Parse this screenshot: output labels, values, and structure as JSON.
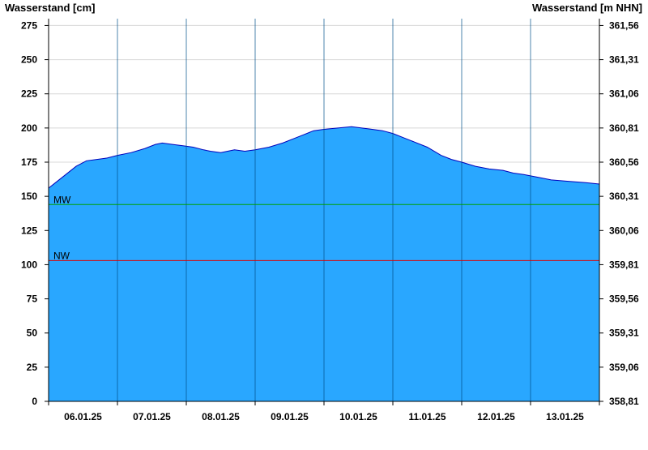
{
  "chart_data": {
    "type": "area",
    "y_left_title": "Wasserstand [cm]",
    "y_right_title": "Wasserstand [m NHN]",
    "ylim": [
      0,
      280
    ],
    "y_ticks": [
      0,
      25,
      50,
      75,
      100,
      125,
      150,
      175,
      200,
      225,
      250,
      275
    ],
    "y_right_ticks": [
      "358,81",
      "359,06",
      "359,31",
      "359,56",
      "359,81",
      "360,06",
      "360,31",
      "360,56",
      "360,81",
      "361,06",
      "361,31",
      "361,56"
    ],
    "x_range_days": [
      0,
      8
    ],
    "x_tick_labels": [
      "06.01.25",
      "07.01.25",
      "08.01.25",
      "09.01.25",
      "10.01.25",
      "11.01.25",
      "12.01.25",
      "13.01.25"
    ],
    "grid": true,
    "series": [
      {
        "x": [
          0,
          0.1,
          0.25,
          0.4,
          0.55,
          0.7,
          0.85,
          1.0,
          1.2,
          1.4,
          1.55,
          1.65,
          1.8,
          1.95,
          2.1,
          2.25,
          2.35,
          2.5,
          2.7,
          2.85,
          3.0,
          3.2,
          3.4,
          3.55,
          3.7,
          3.85,
          4.0,
          4.2,
          4.4,
          4.55,
          4.7,
          4.85,
          5.0,
          5.15,
          5.3,
          5.5,
          5.7,
          5.85,
          6.0,
          6.2,
          6.4,
          6.6,
          6.75,
          6.9,
          7.1,
          7.3,
          7.55,
          7.8,
          8.0
        ],
        "values": [
          156,
          160,
          166,
          172,
          176,
          177,
          178,
          180,
          182,
          185,
          188,
          189,
          188,
          187,
          186,
          184,
          183,
          182,
          184,
          183,
          184,
          186,
          189,
          192,
          195,
          198,
          199,
          200,
          201,
          200,
          199,
          198,
          196,
          193,
          190,
          186,
          180,
          177,
          175,
          172,
          170,
          169,
          167,
          166,
          164,
          162,
          161,
          160,
          159
        ]
      }
    ],
    "reference_lines": [
      {
        "label": "MW",
        "value": 144,
        "color": "#00a000"
      },
      {
        "label": "NW",
        "value": 103,
        "color": "#e00000"
      }
    ],
    "colors": {
      "fill": "#29a7ff",
      "line": "#0000bb",
      "grid": "#d8d8d8",
      "day_line": "#00508a"
    }
  }
}
